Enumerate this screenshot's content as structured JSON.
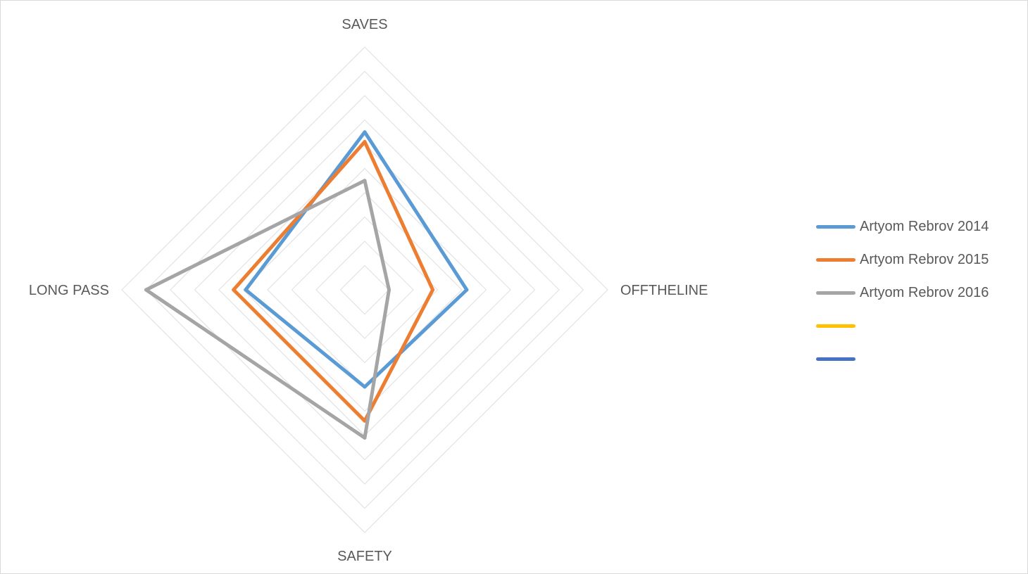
{
  "chart_data": {
    "type": "radar",
    "axes": [
      "SAVES",
      "OFFTHELINE",
      "SAFETY",
      "LONG PASS"
    ],
    "rmax": 10,
    "rings": 10,
    "series": [
      {
        "name": "Artyom Rebrov 2014",
        "color": "#5b9bd5",
        "values": [
          6.5,
          4.2,
          4.0,
          4.9
        ]
      },
      {
        "name": "Artyom Rebrov 2015",
        "color": "#ed7d31",
        "values": [
          6.1,
          2.8,
          5.4,
          5.4
        ]
      },
      {
        "name": "Artyom Rebrov 2016",
        "color": "#a5a5a5",
        "values": [
          4.5,
          1.0,
          6.1,
          9.0
        ]
      },
      {
        "name": "",
        "color": "#ffc000",
        "values": []
      },
      {
        "name": "",
        "color": "#4472c4",
        "values": []
      }
    ],
    "legend_position": "right",
    "grid": true
  }
}
